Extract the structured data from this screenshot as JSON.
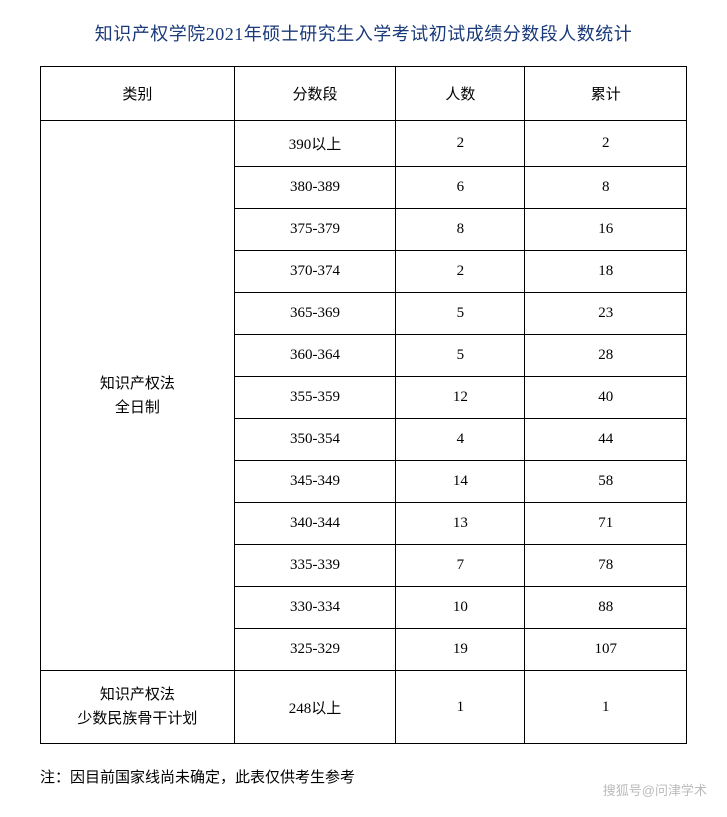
{
  "title": "知识产权学院2021年硕士研究生入学考试初试成绩分数段人数统计",
  "headers": {
    "category": "类别",
    "scoreRange": "分数段",
    "count": "人数",
    "cumulative": "累计"
  },
  "categories": [
    {
      "name": "知识产权法\n全日制",
      "rows": [
        {
          "range": "390以上",
          "count": "2",
          "cumulative": "2"
        },
        {
          "range": "380-389",
          "count": "6",
          "cumulative": "8"
        },
        {
          "range": "375-379",
          "count": "8",
          "cumulative": "16"
        },
        {
          "range": "370-374",
          "count": "2",
          "cumulative": "18"
        },
        {
          "range": "365-369",
          "count": "5",
          "cumulative": "23"
        },
        {
          "range": "360-364",
          "count": "5",
          "cumulative": "28"
        },
        {
          "range": "355-359",
          "count": "12",
          "cumulative": "40"
        },
        {
          "range": "350-354",
          "count": "4",
          "cumulative": "44"
        },
        {
          "range": "345-349",
          "count": "14",
          "cumulative": "58"
        },
        {
          "range": "340-344",
          "count": "13",
          "cumulative": "71"
        },
        {
          "range": "335-339",
          "count": "7",
          "cumulative": "78"
        },
        {
          "range": "330-334",
          "count": "10",
          "cumulative": "88"
        },
        {
          "range": "325-329",
          "count": "19",
          "cumulative": "107"
        }
      ]
    },
    {
      "name": "知识产权法\n少数民族骨干计划",
      "rows": [
        {
          "range": "248以上",
          "count": "1",
          "cumulative": "1"
        }
      ]
    }
  ],
  "footnote": "注：因目前国家线尚未确定，此表仅供考生参考",
  "watermark": "搜狐号@问津学术",
  "styling": {
    "title_color": "#1a3a7a",
    "title_fontsize": 18,
    "cell_fontsize": 15,
    "border_color": "#000000",
    "background_color": "#ffffff",
    "watermark_color": "#bbbbbb",
    "col_widths": [
      "30%",
      "25%",
      "20%",
      "25%"
    ]
  }
}
